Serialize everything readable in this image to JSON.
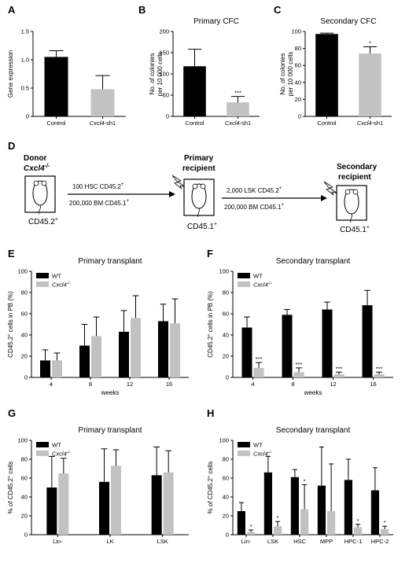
{
  "diagram": {
    "donor_label": "Donor",
    "donor_genotype": "Cxcl4",
    "donor_genotype_sup": "-/-",
    "donor_marker": "CD45.2",
    "primary_label_1": "Primary",
    "primary_label_2": "recipient",
    "primary_marker": "CD45.1",
    "secondary_label_1": "Secondary",
    "secondary_label_2": "recipient",
    "secondary_marker": "CD45.1",
    "arrow1_top": "100 HSC CD45.2",
    "arrow1_bottom": "200,000 BM CD45.1",
    "arrow2_top": "2,000 LSK CD45.2",
    "arrow2_bottom": "200,000 BM CD45.1",
    "sup_plus": "+"
  },
  "chart_data": [
    {
      "panel": "A",
      "type": "bar",
      "title": "",
      "ylabel": "Gene expression",
      "xlabel": "",
      "ylim": [
        0,
        1.5
      ],
      "yticks": [
        "0",
        "0.5",
        "1.0",
        "1.5"
      ],
      "categories": [
        "Control",
        "Cxcl4-sh1"
      ],
      "values": [
        1.05,
        0.48
      ],
      "errors": [
        0.11,
        0.24
      ],
      "colors": [
        "#000000",
        "#c2c2c2"
      ],
      "significance": [
        "",
        ""
      ]
    },
    {
      "panel": "B",
      "type": "bar",
      "title": "Primary CFC",
      "ylabel": "No. of colonies per 10 000 cells",
      "xlabel": "",
      "ylim": [
        0,
        200
      ],
      "yticks": [
        "0",
        "50",
        "100",
        "150",
        "200"
      ],
      "categories": [
        "Control",
        "Cxcl4-sh1"
      ],
      "values": [
        118,
        33
      ],
      "errors": [
        40,
        14
      ],
      "colors": [
        "#000000",
        "#c2c2c2"
      ],
      "significance": [
        "",
        "***"
      ]
    },
    {
      "panel": "C",
      "type": "bar",
      "title": "Secondary CFC",
      "ylabel": "No. of colonies per 10 000 cells",
      "xlabel": "",
      "ylim": [
        0,
        100
      ],
      "yticks": [
        "0",
        "20",
        "40",
        "60",
        "80",
        "100"
      ],
      "categories": [
        "Control",
        "Cxcl4-sh1"
      ],
      "values": [
        97,
        74
      ],
      "errors": [
        1,
        8
      ],
      "colors": [
        "#000000",
        "#c2c2c2"
      ],
      "significance": [
        "",
        "*"
      ]
    },
    {
      "panel": "E",
      "type": "bar",
      "title": "Primary transplant",
      "ylabel": "CD45.2+ cells in PB (%)",
      "xlabel": "weeks",
      "ylim": [
        0,
        100
      ],
      "yticks": [
        "0",
        "20",
        "40",
        "60",
        "80",
        "100"
      ],
      "categories": [
        "4",
        "8",
        "12",
        "16"
      ],
      "legend": "top-left",
      "series": [
        {
          "name": "WT",
          "color": "#000000",
          "values": [
            16,
            30,
            43,
            53
          ],
          "errors": [
            10,
            20,
            20,
            16
          ],
          "significance": [
            "",
            "",
            "",
            ""
          ]
        },
        {
          "name": "Cxcl4-/-",
          "color": "#c2c2c2",
          "values": [
            16,
            39,
            56,
            51
          ],
          "errors": [
            7,
            18,
            21,
            23
          ],
          "significance": [
            "",
            "",
            "",
            ""
          ]
        }
      ]
    },
    {
      "panel": "F",
      "type": "bar",
      "title": "Secondary transplant",
      "ylabel": "CD45.2+ cells in PB (%)",
      "xlabel": "weeks",
      "ylim": [
        0,
        100
      ],
      "yticks": [
        "0",
        "20",
        "40",
        "60",
        "80",
        "100"
      ],
      "categories": [
        "4",
        "8",
        "12",
        "16"
      ],
      "legend": "top-left",
      "series": [
        {
          "name": "WT",
          "color": "#000000",
          "values": [
            47,
            59,
            64,
            68
          ],
          "errors": [
            10,
            5,
            7,
            14
          ],
          "significance": [
            "",
            "",
            "",
            ""
          ]
        },
        {
          "name": "Cxcl4-/-",
          "color": "#c2c2c2",
          "values": [
            9,
            5,
            3,
            3
          ],
          "errors": [
            5,
            4,
            2,
            2
          ],
          "significance": [
            "***",
            "***",
            "***",
            "***"
          ]
        }
      ]
    },
    {
      "panel": "G",
      "type": "bar",
      "title": "Primary transplant",
      "ylabel": "% of CD45.2+ cells",
      "xlabel": "",
      "ylim": [
        0,
        100
      ],
      "yticks": [
        "0",
        "20",
        "40",
        "60",
        "80",
        "100"
      ],
      "categories": [
        "Lin-",
        "LK",
        "LSK"
      ],
      "legend": "top-left",
      "series": [
        {
          "name": "WT",
          "color": "#000000",
          "values": [
            50,
            56,
            63
          ],
          "errors": [
            33,
            35,
            30
          ],
          "significance": [
            "",
            "",
            ""
          ]
        },
        {
          "name": "Cxcl4-/-",
          "color": "#c2c2c2",
          "values": [
            65,
            73,
            66
          ],
          "errors": [
            16,
            17,
            23
          ],
          "significance": [
            "",
            "",
            ""
          ]
        }
      ]
    },
    {
      "panel": "H",
      "type": "bar",
      "title": "Secondary transplant",
      "ylabel": "% of CD45.2+ cells",
      "xlabel": "",
      "ylim": [
        0,
        100
      ],
      "yticks": [
        "0",
        "20",
        "40",
        "60",
        "80",
        "100"
      ],
      "categories": [
        "Lin-",
        "LSK",
        "HSC",
        "MPP",
        "HPC-1",
        "HPC-2"
      ],
      "legend": "top-left",
      "series": [
        {
          "name": "WT",
          "color": "#000000",
          "values": [
            25,
            66,
            61,
            52,
            58,
            47
          ],
          "errors": [
            9,
            17,
            8,
            41,
            22,
            24
          ],
          "significance": [
            "",
            "",
            "",
            "",
            "",
            ""
          ]
        },
        {
          "name": "Cxcl4-/-",
          "color": "#c2c2c2",
          "values": [
            3,
            9,
            27,
            25,
            8,
            6
          ],
          "errors": [
            2,
            5,
            26,
            50,
            3,
            3
          ],
          "significance": [
            "*",
            "*",
            "*",
            "",
            "*",
            "*"
          ]
        }
      ]
    }
  ]
}
